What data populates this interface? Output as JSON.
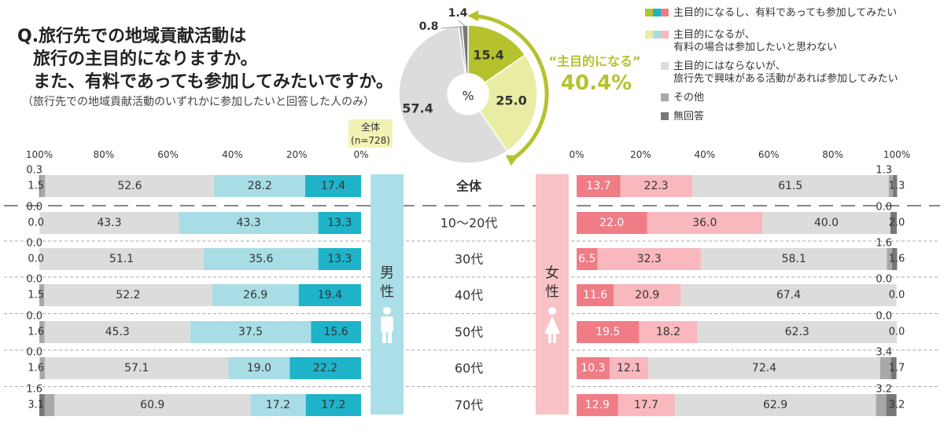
{
  "title": {
    "line1": "Q.旅行先での地域貢献活動は",
    "line2": "旅行の主目的になりますか。",
    "line3": "また、有料であっても参加してみたいですか。"
  },
  "subtitle": "（旅行先での地域貢献活動のいずれかに参加したいと回答した人のみ）",
  "colors": {
    "olive": "#b5c22e",
    "light_olive": "#e8eda3",
    "gray": "#dcdcdc",
    "mid_gray": "#a8a8a8",
    "dark_gray": "#777777",
    "male_pay": "#1eb3c9",
    "male_nopay": "#a8dde6",
    "female_pay": "#f07c86",
    "female_nopay": "#f8b8be",
    "male_band": "#aadfe8",
    "female_band": "#f8c2c6",
    "label_box": "#f2f2b4"
  },
  "legend": [
    {
      "text": "主目的になるし、有料であっても参加してみたい",
      "swatches": [
        "#b5c22e",
        "#1eb3c9",
        "#f07c86"
      ]
    },
    {
      "text": "主目的になるが、\n有料の場合は参加したいと思わない",
      "swatches": [
        "#e8eda3",
        "#a8dde6",
        "#f8b8be"
      ]
    },
    {
      "text": "主目的にはならないが、\n旅行先で興味がある活動があれば参加してみたい",
      "swatches": [
        "#dcdcdc"
      ]
    },
    {
      "text": "その他",
      "swatches": [
        "#a8a8a8"
      ]
    },
    {
      "text": "無回答",
      "swatches": [
        "#777777"
      ]
    }
  ],
  "chart_data": [
    {
      "type": "pie",
      "title": "全体",
      "n": "(n=728)",
      "unit": "%",
      "slices": [
        {
          "label": "主目的になるし、有料であっても参加してみたい",
          "value": 15.4,
          "color": "#b5c22e"
        },
        {
          "label": "主目的になるが、有料の場合は参加したいと思わない",
          "value": 25.0,
          "color": "#e8eda3"
        },
        {
          "label": "主目的にはならないが、旅行先で興味がある活動があれば参加してみたい",
          "value": 57.4,
          "color": "#dcdcdc"
        },
        {
          "label": "その他",
          "value": 0.8,
          "color": "#a8a8a8"
        },
        {
          "label": "無回答",
          "value": 1.4,
          "color": "#777777"
        }
      ],
      "annotation": {
        "label": "“主目的になる”",
        "value": "40.4%"
      }
    },
    {
      "type": "bar",
      "title": "男性",
      "orientation": "horizontal-stacked",
      "direction": "right-to-left",
      "axis_ticks": [
        "100%",
        "80%",
        "60%",
        "40%",
        "20%",
        "0%"
      ],
      "categories": [
        "全体",
        "10～20代",
        "30代",
        "40代",
        "50代",
        "60代",
        "70代"
      ],
      "series": [
        {
          "name": "主目的になるし、有料であっても参加してみたい",
          "values": [
            17.4,
            13.3,
            13.3,
            19.4,
            15.6,
            22.2,
            17.2
          ]
        },
        {
          "name": "主目的になるが、有料の場合は参加したいと思わない",
          "values": [
            28.2,
            43.3,
            35.6,
            26.9,
            37.5,
            19.0,
            17.2
          ]
        },
        {
          "name": "主目的にはならないが、旅行先で興味がある活動があれば参加してみたい",
          "values": [
            52.6,
            43.3,
            51.1,
            52.2,
            45.3,
            57.1,
            60.9
          ]
        },
        {
          "name": "その他",
          "values": [
            1.5,
            0.0,
            0.0,
            1.5,
            1.6,
            1.6,
            3.1
          ]
        },
        {
          "name": "無回答",
          "values": [
            0.3,
            0.0,
            0.0,
            0.0,
            0.0,
            0.0,
            1.6
          ]
        }
      ]
    },
    {
      "type": "bar",
      "title": "女性",
      "orientation": "horizontal-stacked",
      "direction": "left-to-right",
      "axis_ticks": [
        "0%",
        "20%",
        "40%",
        "60%",
        "80%",
        "100%"
      ],
      "categories": [
        "全体",
        "10～20代",
        "30代",
        "40代",
        "50代",
        "60代",
        "70代"
      ],
      "series": [
        {
          "name": "主目的になるし、有料であっても参加してみたい",
          "values": [
            13.7,
            22.0,
            6.5,
            11.6,
            19.5,
            10.3,
            12.9
          ]
        },
        {
          "name": "主目的になるが、有料の場合は参加したいと思わない",
          "values": [
            22.3,
            36.0,
            32.3,
            20.9,
            18.2,
            12.1,
            17.7
          ]
        },
        {
          "name": "主目的にはならないが、旅行先で興味がある活動があれば参加してみたい",
          "values": [
            61.5,
            40.0,
            58.1,
            67.4,
            62.3,
            72.4,
            62.9
          ]
        },
        {
          "name": "その他",
          "values": [
            1.3,
            0.0,
            1.6,
            0.0,
            0.0,
            3.4,
            3.2
          ]
        },
        {
          "name": "無回答",
          "values": [
            1.3,
            2.0,
            1.6,
            0.0,
            0.0,
            1.7,
            3.2
          ]
        }
      ]
    }
  ]
}
